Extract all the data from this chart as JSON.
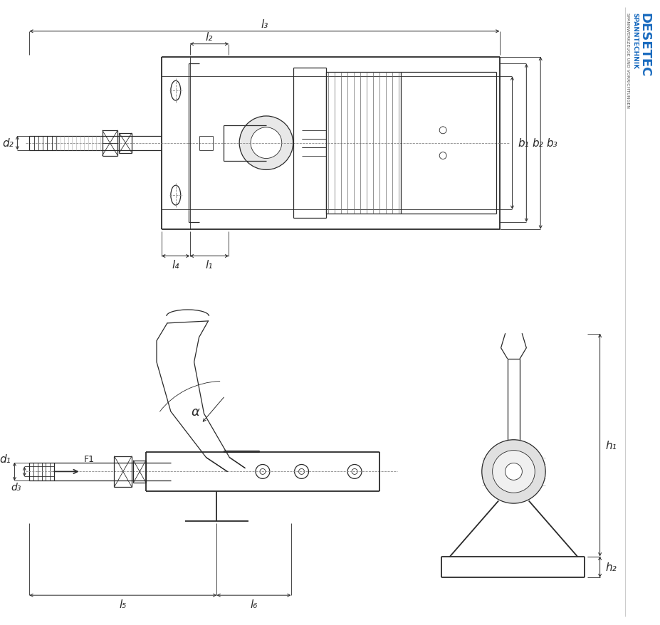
{
  "bg_color": "#ffffff",
  "line_color": "#2a2a2a",
  "dim_color": "#2a2a2a",
  "thin_lw": 0.6,
  "med_lw": 0.9,
  "thick_lw": 1.3,
  "desetec_blue": "#1a6bbf",
  "desetec_text": "DESETEC",
  "spanntechnik_text": "SPANNTECHNIK",
  "subtitle_text": "SPANNWERKZEUGE UND VORRICHTUNGEN"
}
